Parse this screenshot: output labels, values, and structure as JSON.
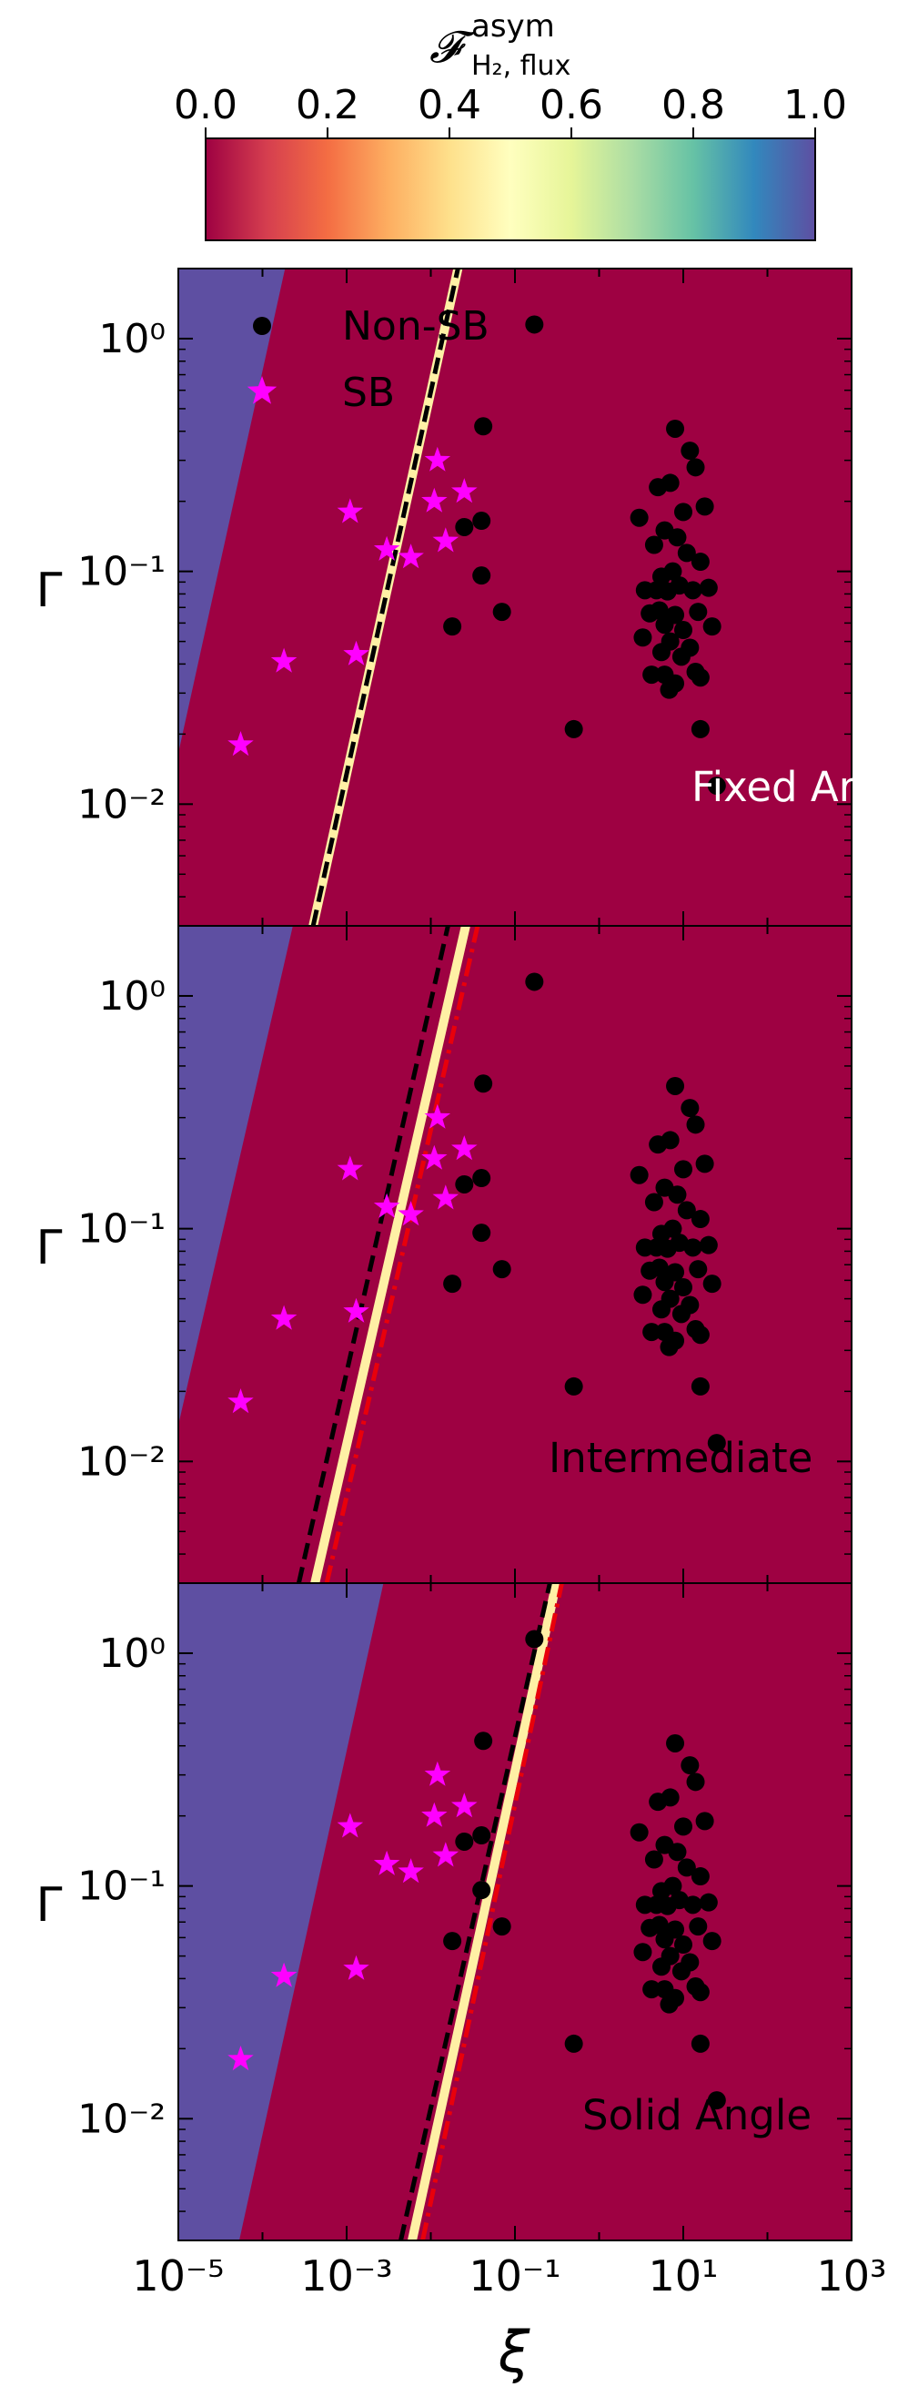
{
  "colorbar": {
    "label": "𝓕",
    "label_sup": "asym",
    "label_sub": "H₂, flux",
    "ticks": [
      "0.0",
      "0.2",
      "0.4",
      "0.6",
      "0.8",
      "1.0"
    ],
    "range": [
      0.0,
      1.0
    ],
    "colormap": "Spectral",
    "colormap_stops": [
      "#9e0142",
      "#d53e4f",
      "#f46d43",
      "#fdae61",
      "#fee08b",
      "#ffffbf",
      "#e6f598",
      "#abdda4",
      "#66c2a5",
      "#3288bd",
      "#5e4fa2"
    ]
  },
  "xaxis": {
    "label": "ξ",
    "ticks": [
      "10⁻⁵",
      "10⁻³",
      "10⁻¹",
      "10¹",
      "10³"
    ]
  },
  "yaxis": {
    "label": "Γ",
    "ticks": [
      "10⁰",
      "10⁻¹",
      "10⁻²"
    ]
  },
  "legend": {
    "items": [
      "Non-SB",
      "SB"
    ]
  },
  "colors": {
    "non_sb": "#000000",
    "sb": "#ff00ff",
    "dashed_line": "#000000",
    "dashdot_line": "#e8000b"
  },
  "chart_data": [
    {
      "type": "scatter",
      "label": "Fixed Area",
      "xscale": "log",
      "yscale": "log",
      "xlim": [
        1e-05,
        1000
      ],
      "ylim": [
        0.003,
        2.0
      ],
      "dashed_line": [
        [
          0.0004,
          0.003
        ],
        [
          0.021,
          2.0
        ]
      ],
      "dashdot_line": null,
      "heatmap_boundary": [
        [
          0.0004,
          0.003
        ],
        [
          0.021,
          2.0
        ]
      ]
    },
    {
      "type": "scatter",
      "label": "Intermediate",
      "xscale": "log",
      "yscale": "log",
      "xlim": [
        1e-05,
        1000
      ],
      "ylim": [
        0.003,
        2.0
      ],
      "dashed_line": [
        [
          0.00027,
          0.003
        ],
        [
          0.016,
          2.0
        ]
      ],
      "dashdot_line": [
        [
          0.00058,
          0.003
        ],
        [
          0.036,
          2.0
        ]
      ],
      "heatmap_boundary": [
        [
          0.00042,
          0.003
        ],
        [
          0.026,
          2.0
        ]
      ]
    },
    {
      "type": "scatter",
      "label": "Solid Angle",
      "xscale": "log",
      "yscale": "log",
      "xlim": [
        1e-05,
        1000
      ],
      "ylim": [
        0.003,
        2.0
      ],
      "dashed_line": [
        [
          0.0044,
          0.003
        ],
        [
          0.26,
          2.0
        ]
      ],
      "dashdot_line": [
        [
          0.008,
          0.003
        ],
        [
          0.36,
          2.0
        ]
      ],
      "heatmap_boundary": [
        [
          0.006,
          0.003
        ],
        [
          0.31,
          2.0
        ]
      ]
    }
  ],
  "series": {
    "non_sb": {
      "name": "Non-SB",
      "points": [
        [
          0.17,
          1.15
        ],
        [
          0.042,
          0.42
        ],
        [
          0.025,
          0.155
        ],
        [
          0.04,
          0.165
        ],
        [
          0.04,
          0.096
        ],
        [
          0.018,
          0.058
        ],
        [
          0.07,
          0.067
        ],
        [
          0.5,
          0.021
        ],
        [
          25.0,
          0.012
        ],
        [
          8.0,
          0.41
        ],
        [
          12.0,
          0.33
        ],
        [
          5.0,
          0.23
        ],
        [
          7.0,
          0.24
        ],
        [
          10.0,
          0.18
        ],
        [
          14.0,
          0.28
        ],
        [
          18.0,
          0.19
        ],
        [
          3.0,
          0.17
        ],
        [
          4.5,
          0.13
        ],
        [
          6.0,
          0.15
        ],
        [
          8.5,
          0.14
        ],
        [
          11.0,
          0.12
        ],
        [
          16.0,
          0.11
        ],
        [
          5.5,
          0.095
        ],
        [
          7.5,
          0.1
        ],
        [
          9.0,
          0.087
        ],
        [
          3.5,
          0.083
        ],
        [
          4.8,
          0.083
        ],
        [
          6.5,
          0.082
        ],
        [
          13.0,
          0.083
        ],
        [
          20.0,
          0.085
        ],
        [
          4.0,
          0.066
        ],
        [
          5.2,
          0.068
        ],
        [
          8.0,
          0.065
        ],
        [
          15.0,
          0.067
        ],
        [
          6.0,
          0.059
        ],
        [
          10.0,
          0.056
        ],
        [
          22.0,
          0.058
        ],
        [
          3.3,
          0.052
        ],
        [
          7.0,
          0.05
        ],
        [
          12.0,
          0.047
        ],
        [
          5.5,
          0.045
        ],
        [
          9.5,
          0.043
        ],
        [
          14.0,
          0.037
        ],
        [
          4.2,
          0.036
        ],
        [
          6.0,
          0.036
        ],
        [
          8.0,
          0.033
        ],
        [
          16.0,
          0.035
        ],
        [
          6.8,
          0.031
        ],
        [
          16.0,
          0.021
        ]
      ]
    },
    "sb": {
      "name": "SB",
      "points": [
        [
          0.012,
          0.3
        ],
        [
          0.025,
          0.22
        ],
        [
          0.011,
          0.2
        ],
        [
          0.015,
          0.135
        ],
        [
          0.0011,
          0.18
        ],
        [
          0.003,
          0.124
        ],
        [
          0.0058,
          0.115
        ],
        [
          0.0013,
          0.044
        ],
        [
          0.00018,
          0.041
        ],
        [
          5.5e-05,
          0.018
        ]
      ]
    }
  }
}
